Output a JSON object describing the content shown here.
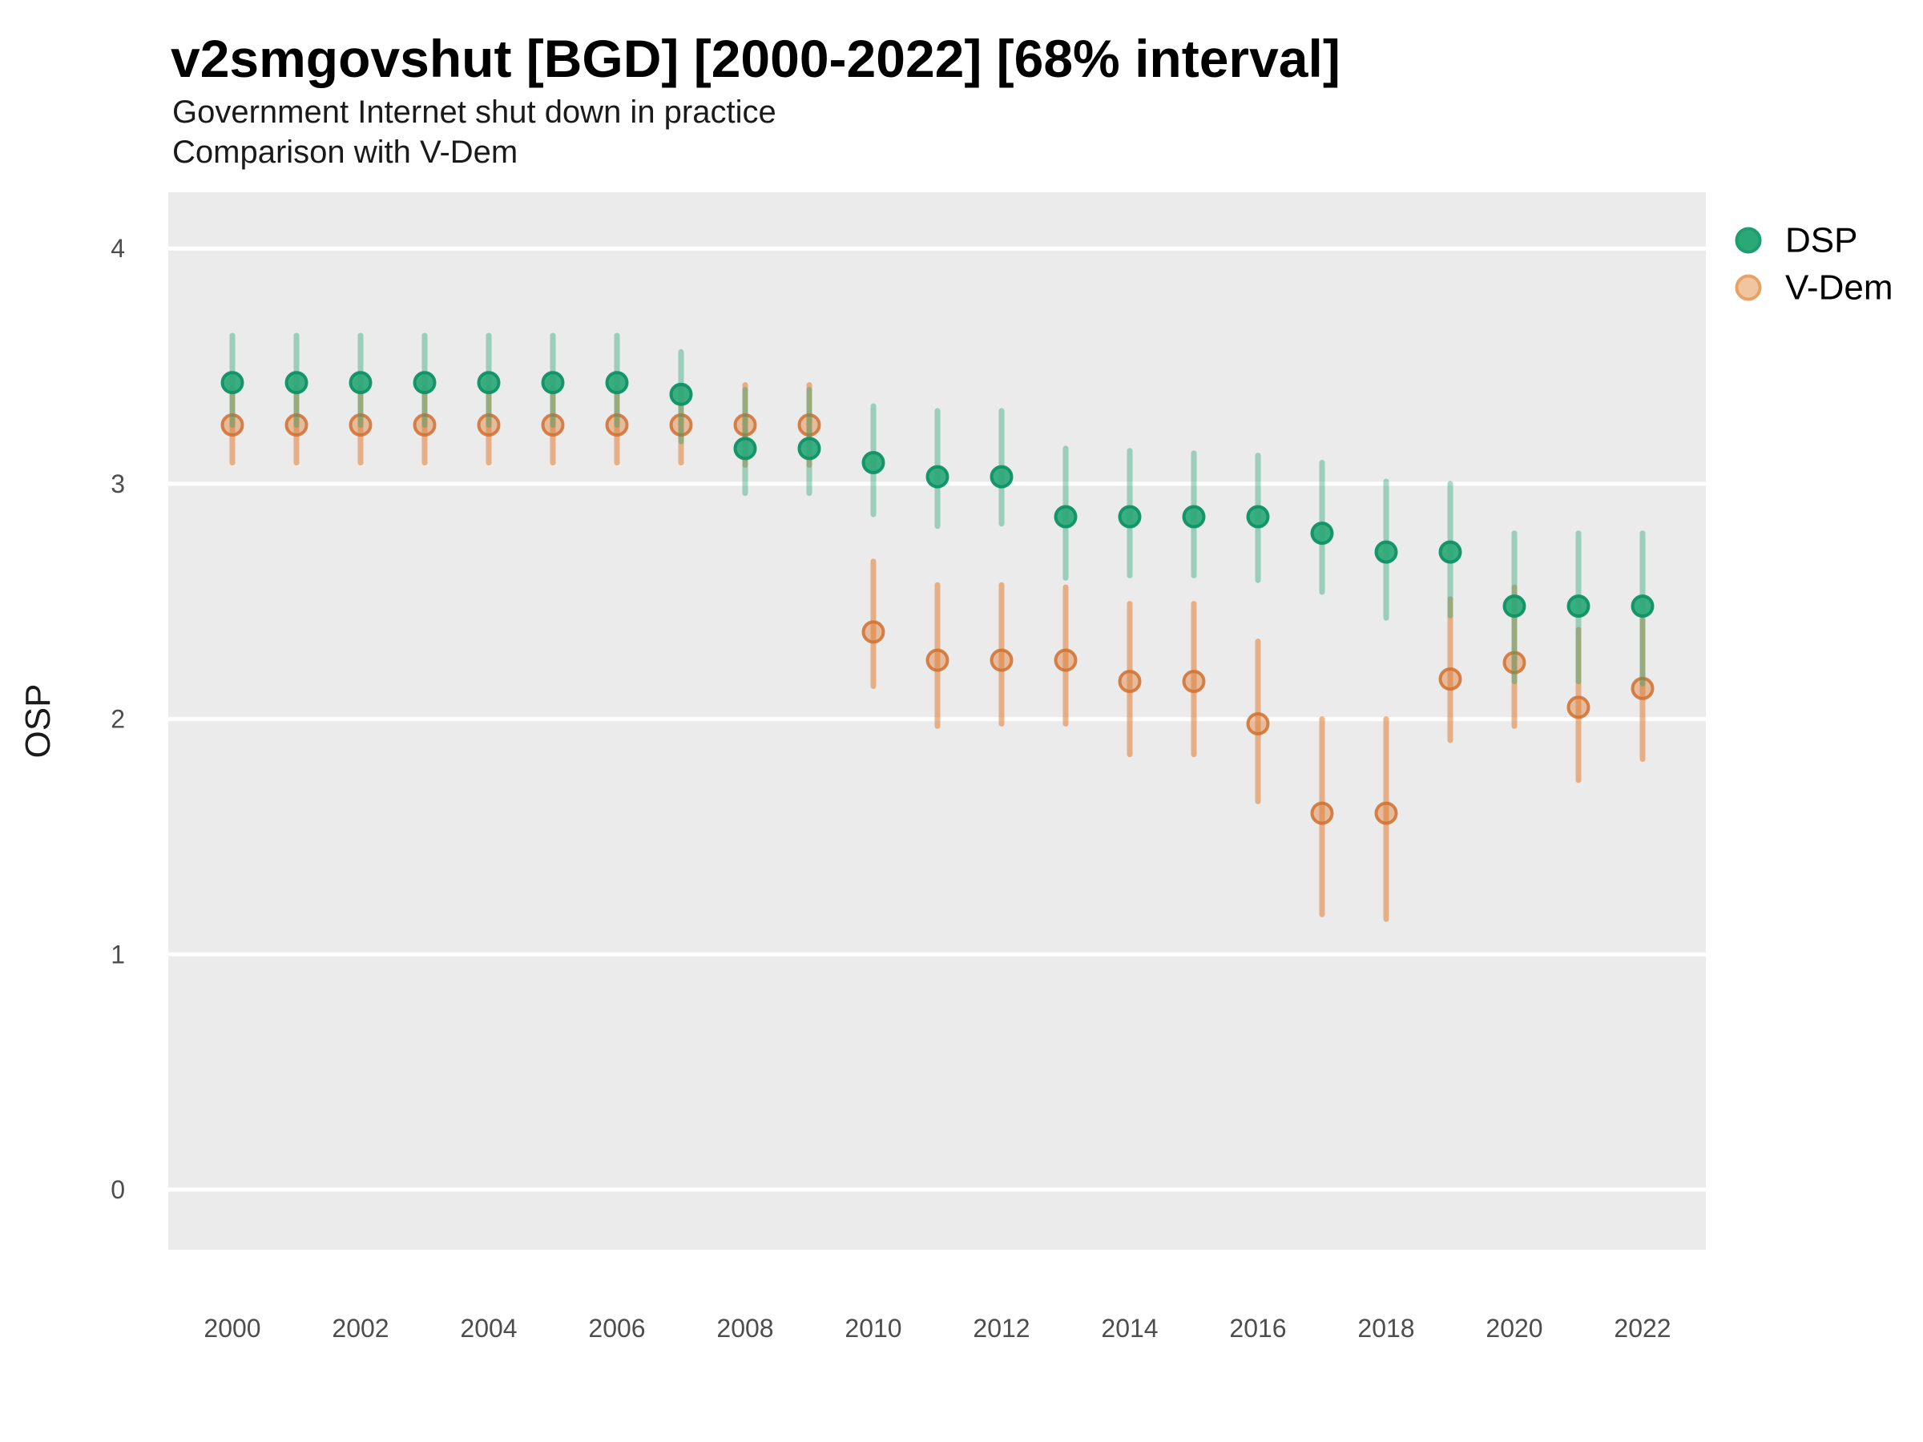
{
  "title": "v2smgovshut [BGD] [2000-2022] [68% interval]",
  "subtitle1": "Government Internet shut down in practice",
  "subtitle2": "Comparison with V-Dem",
  "ylabel": "OSP",
  "colors": {
    "page_background": "#ffffff",
    "plot_background": "#ebebeb",
    "gridline": "#ffffff",
    "tick_text": "#4d4d4d",
    "title_text": "#000000",
    "dsp_green": "#2aa876",
    "vdem_orange": "#e0813a"
  },
  "legend": [
    {
      "label": "DSP",
      "swatch_fill": "#2aa876",
      "swatch_stroke": "#1d9e70"
    },
    {
      "label": "V-Dem",
      "swatch_fill": "#f2c5a1",
      "swatch_stroke": "#e8a268"
    }
  ],
  "chart_data": {
    "type": "pointrange",
    "title": "v2smgovshut [BGD] [2000-2022] [68% interval]",
    "subtitle": "Government Internet shut down in practice — Comparison with V-Dem",
    "xlabel": "",
    "ylabel": "OSP",
    "interval": "68%",
    "grid": "major-horizontal-white-on-gray",
    "legend_position": "right-top",
    "ylim": [
      -0.26,
      4.24
    ],
    "xlim": [
      1999,
      2023
    ],
    "y_ticks": [
      {
        "value": 4,
        "label": "4"
      },
      {
        "value": 3,
        "label": "3"
      },
      {
        "value": 2,
        "label": "2"
      },
      {
        "value": 1,
        "label": "1"
      },
      {
        "value": 0,
        "label": "0"
      }
    ],
    "x_ticks": [
      {
        "value": 2000,
        "label": "2000"
      },
      {
        "value": 2002,
        "label": "2002"
      },
      {
        "value": 2004,
        "label": "2004"
      },
      {
        "value": 2006,
        "label": "2006"
      },
      {
        "value": 2008,
        "label": "2008"
      },
      {
        "value": 2010,
        "label": "2010"
      },
      {
        "value": 2012,
        "label": "2012"
      },
      {
        "value": 2014,
        "label": "2014"
      },
      {
        "value": 2016,
        "label": "2016"
      },
      {
        "value": 2018,
        "label": "2018"
      },
      {
        "value": 2020,
        "label": "2020"
      },
      {
        "value": 2022,
        "label": "2022"
      }
    ],
    "series": [
      {
        "name": "DSP",
        "base_color": "#2aa876",
        "stroke_color": "#0f9166",
        "line_alpha": 0.42,
        "fill_alpha": 0.92,
        "stroke_alpha": 0.95,
        "points": [
          {
            "x": 2000,
            "y": 3.43,
            "lo": 3.25,
            "hi": 3.63
          },
          {
            "x": 2001,
            "y": 3.43,
            "lo": 3.25,
            "hi": 3.63
          },
          {
            "x": 2002,
            "y": 3.43,
            "lo": 3.25,
            "hi": 3.63
          },
          {
            "x": 2003,
            "y": 3.43,
            "lo": 3.25,
            "hi": 3.63
          },
          {
            "x": 2004,
            "y": 3.43,
            "lo": 3.25,
            "hi": 3.63
          },
          {
            "x": 2005,
            "y": 3.43,
            "lo": 3.25,
            "hi": 3.63
          },
          {
            "x": 2006,
            "y": 3.43,
            "lo": 3.25,
            "hi": 3.63
          },
          {
            "x": 2007,
            "y": 3.38,
            "lo": 3.18,
            "hi": 3.56
          },
          {
            "x": 2008,
            "y": 3.15,
            "lo": 2.96,
            "hi": 3.4
          },
          {
            "x": 2009,
            "y": 3.15,
            "lo": 2.96,
            "hi": 3.4
          },
          {
            "x": 2010,
            "y": 3.09,
            "lo": 2.87,
            "hi": 3.33
          },
          {
            "x": 2011,
            "y": 3.03,
            "lo": 2.82,
            "hi": 3.31
          },
          {
            "x": 2012,
            "y": 3.03,
            "lo": 2.83,
            "hi": 3.31
          },
          {
            "x": 2013,
            "y": 2.86,
            "lo": 2.6,
            "hi": 3.15
          },
          {
            "x": 2014,
            "y": 2.86,
            "lo": 2.61,
            "hi": 3.14
          },
          {
            "x": 2015,
            "y": 2.86,
            "lo": 2.61,
            "hi": 3.13
          },
          {
            "x": 2016,
            "y": 2.86,
            "lo": 2.59,
            "hi": 3.12
          },
          {
            "x": 2017,
            "y": 2.79,
            "lo": 2.54,
            "hi": 3.09
          },
          {
            "x": 2018,
            "y": 2.71,
            "lo": 2.43,
            "hi": 3.01
          },
          {
            "x": 2019,
            "y": 2.71,
            "lo": 2.44,
            "hi": 3.0
          },
          {
            "x": 2020,
            "y": 2.48,
            "lo": 2.16,
            "hi": 2.79
          },
          {
            "x": 2021,
            "y": 2.48,
            "lo": 2.16,
            "hi": 2.79
          },
          {
            "x": 2022,
            "y": 2.48,
            "lo": 2.15,
            "hi": 2.79
          }
        ]
      },
      {
        "name": "V-Dem",
        "base_color": "#e0813a",
        "stroke_color": "#d0702f",
        "line_alpha": 0.58,
        "fill_alpha": 0.45,
        "stroke_alpha": 0.85,
        "points": [
          {
            "x": 2000,
            "y": 3.25,
            "lo": 3.09,
            "hi": 3.41
          },
          {
            "x": 2001,
            "y": 3.25,
            "lo": 3.09,
            "hi": 3.41
          },
          {
            "x": 2002,
            "y": 3.25,
            "lo": 3.09,
            "hi": 3.41
          },
          {
            "x": 2003,
            "y": 3.25,
            "lo": 3.09,
            "hi": 3.41
          },
          {
            "x": 2004,
            "y": 3.25,
            "lo": 3.09,
            "hi": 3.41
          },
          {
            "x": 2005,
            "y": 3.25,
            "lo": 3.09,
            "hi": 3.41
          },
          {
            "x": 2006,
            "y": 3.25,
            "lo": 3.09,
            "hi": 3.41
          },
          {
            "x": 2007,
            "y": 3.25,
            "lo": 3.09,
            "hi": 3.41
          },
          {
            "x": 2008,
            "y": 3.25,
            "lo": 3.08,
            "hi": 3.42
          },
          {
            "x": 2009,
            "y": 3.25,
            "lo": 3.08,
            "hi": 3.42
          },
          {
            "x": 2010,
            "y": 2.37,
            "lo": 2.14,
            "hi": 2.67
          },
          {
            "x": 2011,
            "y": 2.25,
            "lo": 1.97,
            "hi": 2.57
          },
          {
            "x": 2012,
            "y": 2.25,
            "lo": 1.98,
            "hi": 2.57
          },
          {
            "x": 2013,
            "y": 2.25,
            "lo": 1.98,
            "hi": 2.56
          },
          {
            "x": 2014,
            "y": 2.16,
            "lo": 1.85,
            "hi": 2.49
          },
          {
            "x": 2015,
            "y": 2.16,
            "lo": 1.85,
            "hi": 2.49
          },
          {
            "x": 2016,
            "y": 1.98,
            "lo": 1.65,
            "hi": 2.33
          },
          {
            "x": 2017,
            "y": 1.6,
            "lo": 1.17,
            "hi": 2.0
          },
          {
            "x": 2018,
            "y": 1.6,
            "lo": 1.15,
            "hi": 2.0
          },
          {
            "x": 2019,
            "y": 2.17,
            "lo": 1.91,
            "hi": 2.51
          },
          {
            "x": 2020,
            "y": 2.24,
            "lo": 1.97,
            "hi": 2.56
          },
          {
            "x": 2021,
            "y": 2.05,
            "lo": 1.74,
            "hi": 2.38
          },
          {
            "x": 2022,
            "y": 2.13,
            "lo": 1.83,
            "hi": 2.42
          }
        ]
      }
    ]
  }
}
